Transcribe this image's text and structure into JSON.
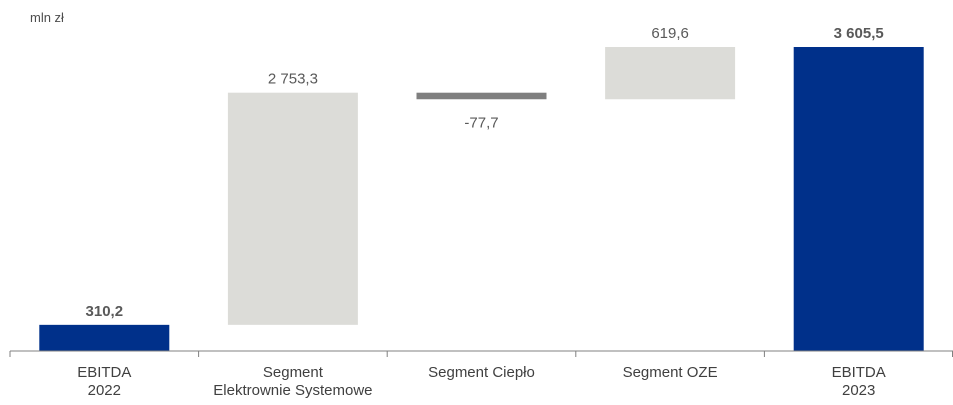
{
  "chart_data": {
    "type": "waterfall",
    "unit": "mln zł",
    "categories": [
      [
        "EBITDA",
        "2022"
      ],
      [
        "Segment",
        "Elektrownie Systemowe"
      ],
      [
        "Segment Ciepło"
      ],
      [
        "Segment OZE"
      ],
      [
        "EBITDA",
        "2023"
      ]
    ],
    "values": [
      310.2,
      2753.3,
      -77.7,
      619.6,
      3605.5
    ],
    "value_labels": [
      "310,2",
      "2 753,3",
      "-77,7",
      "619,6",
      "3 605,5"
    ],
    "bar_kinds": [
      "total",
      "delta",
      "delta",
      "delta",
      "total"
    ],
    "ylim": [
      0,
      3605.5
    ],
    "grid": false,
    "legend": "none",
    "colors": {
      "total": "#00308a",
      "increase": "#dcdcd8",
      "decrease": "#7f7f7f",
      "value_text": "#595959",
      "axis": "#808080",
      "category_text": "#404040"
    }
  }
}
